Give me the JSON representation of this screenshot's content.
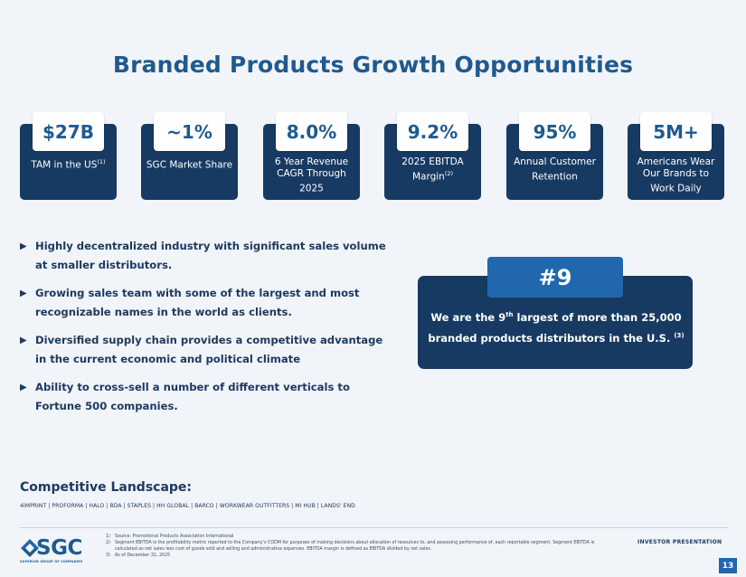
{
  "title": "Branded Products Growth Opportunities",
  "stats": [
    {
      "value": "$27B",
      "label": "TAM in the US",
      "sup": "(1)"
    },
    {
      "value": "~1%",
      "label": "SGC Market Share",
      "sup": ""
    },
    {
      "value": "8.0%",
      "label": "6 Year Revenue CAGR Through 2025",
      "sup": ""
    },
    {
      "value": "9.2%",
      "label": "2025 EBITDA Margin",
      "sup": "(2)"
    },
    {
      "value": "95%",
      "label": "Annual Customer Retention",
      "sup": ""
    },
    {
      "value": "5M+",
      "label": "Americans Wear Our Brands to Work Daily",
      "sup": ""
    }
  ],
  "bullets": [
    "Highly decentralized industry with significant sales volume at smaller distributors.",
    "Growing sales team with some of the largest and most recognizable names in the world as clients.",
    "Diversified supply chain provides a competitive advantage in the current economic and political climate",
    "Ability to cross-sell a number of different verticals to Fortune 500 companies."
  ],
  "rank": {
    "badge": "#9",
    "text_pre": "We are the 9",
    "text_sup": "th",
    "text_mid": " largest of more than 25,000 branded products distributors in the U.S.",
    "text_note": "(3)"
  },
  "competitive": {
    "title": "Competitive Landscape:",
    "list": "4IMPRINT | PROFORMA | HALO | BDA | STAPLES | HH GLOBAL | BARCO | WORKWEAR OUTFITTERS | MI HUB | LANDS' END"
  },
  "footnotes": [
    {
      "num": "1)",
      "text": "Source: Promotional Products Association International"
    },
    {
      "num": "2)",
      "text": "Segment EBITDA is the profitability metric reported to the Company's CODM for purposes of making decisions about allocation of resources to, and assessing performance of, each reportable segment. Segment EBITDA is calculated as net sales less cost of goods sold and selling and administrative expenses. EBITDA margin is defined as EBITDA divided by net sales."
    },
    {
      "num": "3)",
      "text": "As of December 31, 2025"
    }
  ],
  "logo": {
    "text": "SGC",
    "sub": "SUPERIOR GROUP OF COMPANIES"
  },
  "footer_label": "INVESTOR PRESENTATION",
  "page_number": "13",
  "colors": {
    "navy": "#173a62",
    "blue": "#2167ae",
    "title_blue": "#1f5a8f",
    "background": "#f1f4f9"
  }
}
